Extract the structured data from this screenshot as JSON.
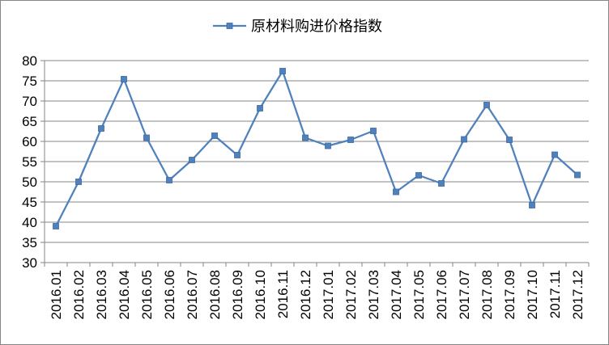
{
  "chart_data": {
    "type": "line",
    "legend_position": "top",
    "grid": true,
    "ylim": [
      30,
      80
    ],
    "ytick_step": 5,
    "yticks": [
      "30",
      "35",
      "40",
      "45",
      "50",
      "55",
      "60",
      "65",
      "70",
      "75",
      "80"
    ],
    "categories": [
      "2016.01",
      "2016.02",
      "2016.03",
      "2016.04",
      "2016.05",
      "2016.06",
      "2016.07",
      "2016.08",
      "2016.09",
      "2016.10",
      "2016.11",
      "2016.12",
      "2017.01",
      "2017.02",
      "2017.03",
      "2017.04",
      "2017.05",
      "2017.06",
      "2017.07",
      "2017.08",
      "2017.09",
      "2017.10",
      "2017.11",
      "2017.12"
    ],
    "series": [
      {
        "name": "原材料购进价格指数",
        "color": "#4F81BD",
        "marker": "square",
        "values": [
          39.0,
          50.0,
          63.2,
          75.4,
          60.9,
          50.4,
          55.4,
          61.4,
          56.6,
          68.2,
          77.4,
          60.9,
          58.9,
          60.4,
          62.6,
          47.5,
          51.6,
          49.6,
          60.5,
          69.0,
          60.4,
          44.2,
          56.7,
          51.7
        ]
      }
    ]
  }
}
